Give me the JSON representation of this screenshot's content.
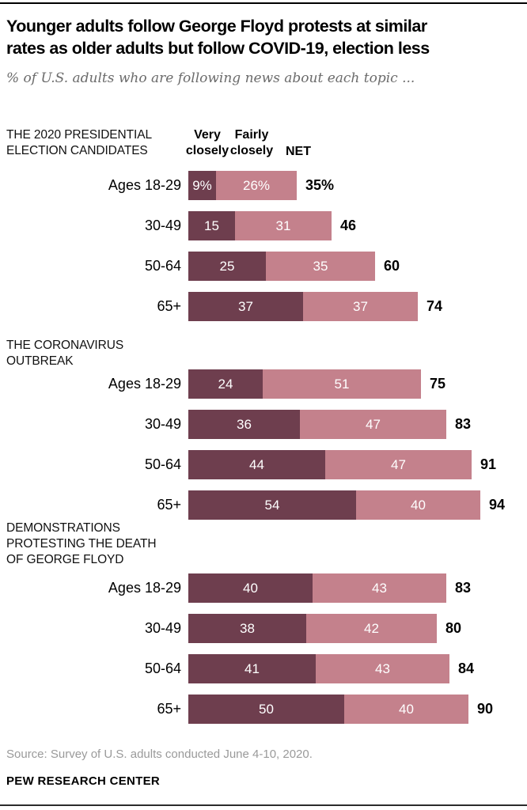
{
  "page": {
    "title": "Younger adults follow George Floyd protests at similar\nrates as older adults but follow COVID-19, election less",
    "subtitle": "% of U.S. adults who are following news about each topic ...",
    "source": "Source: Survey of U.S. adults conducted June 4-10, 2020.",
    "attribution": "PEW RESEARCH CENTER"
  },
  "legend": {
    "very_closely": "Very\nclosely",
    "fairly_closely": "Fairly\nclosely",
    "net": "NET"
  },
  "colors": {
    "very_closely": "#6e3e4e",
    "fairly_closely": "#c4818c",
    "rule_top": "#000000",
    "rule_bottom": "#2b2b2b",
    "subtitle_text": "#6b6b6b",
    "source_text": "#9a9a9a"
  },
  "chart_data": {
    "type": "bar",
    "stacked": true,
    "orientation": "horizontal",
    "unit": "percent",
    "axis_max": 100,
    "series_names": [
      "Very closely",
      "Fairly closely"
    ],
    "net_column_label": "NET",
    "groups": [
      {
        "title": "THE 2020 PRESIDENTIAL\nELECTION CANDIDATES",
        "rows": [
          {
            "label": "Ages 18-29",
            "values": [
              9,
              26
            ],
            "value_labels": [
              "9%",
              "26%"
            ],
            "net": 35,
            "net_label": "35%"
          },
          {
            "label": "30-49",
            "values": [
              15,
              31
            ],
            "value_labels": [
              "15",
              "31"
            ],
            "net": 46,
            "net_label": "46"
          },
          {
            "label": "50-64",
            "values": [
              25,
              35
            ],
            "value_labels": [
              "25",
              "35"
            ],
            "net": 60,
            "net_label": "60"
          },
          {
            "label": "65+",
            "values": [
              37,
              37
            ],
            "value_labels": [
              "37",
              "37"
            ],
            "net": 74,
            "net_label": "74"
          }
        ]
      },
      {
        "title": "THE CORONAVIRUS\nOUTBREAK",
        "rows": [
          {
            "label": "Ages 18-29",
            "values": [
              24,
              51
            ],
            "value_labels": [
              "24",
              "51"
            ],
            "net": 75,
            "net_label": "75"
          },
          {
            "label": "30-49",
            "values": [
              36,
              47
            ],
            "value_labels": [
              "36",
              "47"
            ],
            "net": 83,
            "net_label": "83"
          },
          {
            "label": "50-64",
            "values": [
              44,
              47
            ],
            "value_labels": [
              "44",
              "47"
            ],
            "net": 91,
            "net_label": "91"
          },
          {
            "label": "65+",
            "values": [
              54,
              40
            ],
            "value_labels": [
              "54",
              "40"
            ],
            "net": 94,
            "net_label": "94"
          }
        ]
      },
      {
        "title": "DEMONSTRATIONS\nPROTESTING THE DEATH\nOF GEORGE FLOYD",
        "rows": [
          {
            "label": "Ages 18-29",
            "values": [
              40,
              43
            ],
            "value_labels": [
              "40",
              "43"
            ],
            "net": 83,
            "net_label": "83"
          },
          {
            "label": "30-49",
            "values": [
              38,
              42
            ],
            "value_labels": [
              "38",
              "42"
            ],
            "net": 80,
            "net_label": "80"
          },
          {
            "label": "50-64",
            "values": [
              41,
              43
            ],
            "value_labels": [
              "41",
              "43"
            ],
            "net": 84,
            "net_label": "84"
          },
          {
            "label": "65+",
            "values": [
              50,
              40
            ],
            "value_labels": [
              "50",
              "40"
            ],
            "net": 90,
            "net_label": "90"
          }
        ]
      }
    ]
  }
}
